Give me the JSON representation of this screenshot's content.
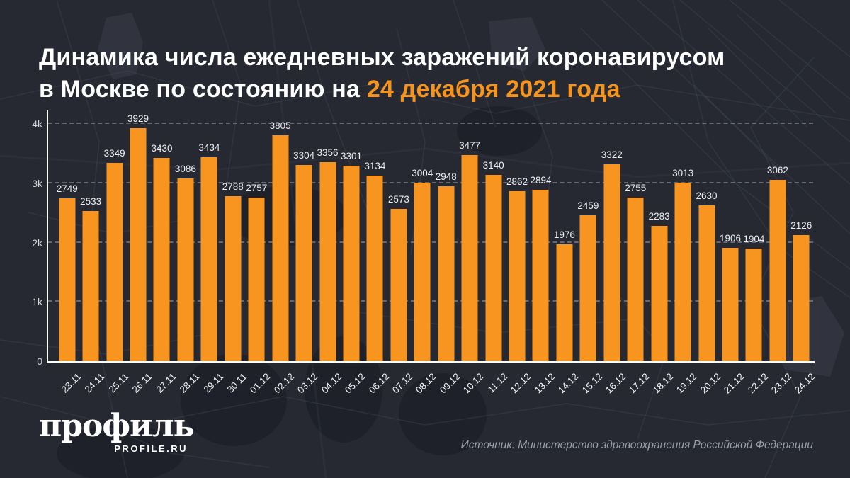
{
  "title": {
    "line1": "Динамика числа ежедневных заражений коронавирусом",
    "line2_plain": "в Москве по состоянию на",
    "line2_highlight": "24 декабря 2021 года"
  },
  "chart_data": {
    "type": "bar",
    "title": "Динамика числа ежедневных заражений коронавирусом в Москве по состоянию на 24 декабря 2021 года",
    "xlabel": "",
    "ylabel": "",
    "categories": [
      "23.11",
      "24.11",
      "25.11",
      "26.11",
      "27.11",
      "28.11",
      "29.11",
      "30.11",
      "01.12",
      "02.12",
      "03.12",
      "04.12",
      "05.12",
      "06.12",
      "07.12",
      "08.12",
      "09.12",
      "10.12",
      "11.12",
      "12.12",
      "13.12",
      "14.12",
      "15.12",
      "16.12",
      "17.12",
      "18.12",
      "19.12",
      "20.12",
      "21.12",
      "22.12",
      "23.12",
      "24.12"
    ],
    "values": [
      2749,
      2533,
      3349,
      3929,
      3430,
      3086,
      3434,
      2788,
      2757,
      3805,
      3304,
      3356,
      3301,
      3134,
      2573,
      3004,
      2948,
      3477,
      3140,
      2862,
      2894,
      1976,
      2459,
      3322,
      2755,
      2283,
      3013,
      2630,
      1906,
      1904,
      3062,
      2126
    ],
    "ylim": [
      0,
      4000
    ],
    "ytick_labels": [
      "0",
      "1k",
      "2k",
      "3k",
      "4k"
    ],
    "grid": "horizontal-dashed",
    "legend": "none",
    "bar_color": "#F89420",
    "value_label_color": "#ECEEF1"
  },
  "footer": {
    "logo_text": "профиль",
    "logo_url": "PROFILE.RU",
    "source": "Источник: Министерство здравоохранения Российской Федерации"
  },
  "colors": {
    "background": "#262932",
    "accent_orange": "#F7941D",
    "title_text": "#FFFFFF",
    "axis": "#FFFFFF",
    "gridline": "#969CA8",
    "source_text": "#9BA0A8"
  }
}
